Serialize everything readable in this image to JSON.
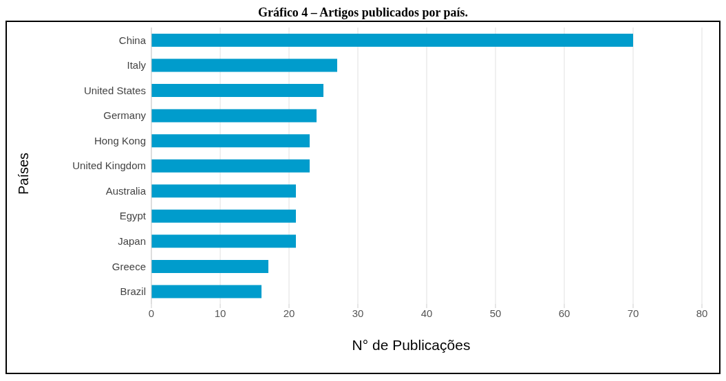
{
  "chart_data": {
    "type": "bar",
    "orientation": "horizontal",
    "title": "Gráfico 4 – Artigos publicados por país.",
    "xlabel": "N° de Publicações",
    "ylabel": "Países",
    "categories": [
      "China",
      "Italy",
      "United States",
      "Germany",
      "Hong Kong",
      "United Kingdom",
      "Australia",
      "Egypt",
      "Japan",
      "Greece",
      "Brazil"
    ],
    "values": [
      70,
      27,
      25,
      24,
      23,
      23,
      21,
      21,
      21,
      17,
      16
    ],
    "color": "#009ccc",
    "xlim": [
      0,
      80
    ],
    "xticks": [
      0,
      10,
      20,
      30,
      40,
      50,
      60,
      70,
      80
    ],
    "grid": "x"
  }
}
